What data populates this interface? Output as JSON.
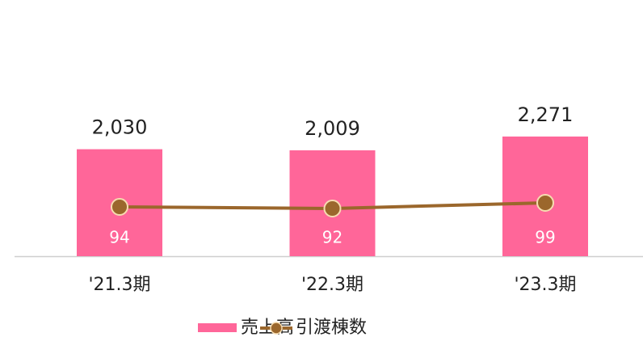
{
  "chart_data": {
    "type": "bar-line",
    "categories": [
      "'21.3期",
      "'22.3期",
      "'23.3期"
    ],
    "series": [
      {
        "name": "売上高",
        "type": "bar",
        "color": "#ff6699",
        "values": [
          2030,
          2009,
          2271
        ],
        "value_labels": [
          "2,030",
          "2,009",
          "2,271"
        ]
      },
      {
        "name": "引渡棟数",
        "type": "line",
        "axis": "y2",
        "color": "#9b672c",
        "values": [
          94,
          92,
          99
        ]
      }
    ]
  }
}
